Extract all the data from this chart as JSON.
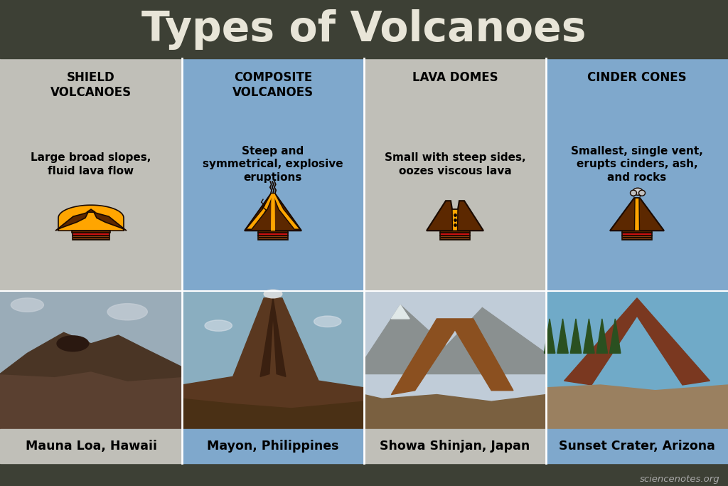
{
  "title": "Types of Volcanoes",
  "title_bg": "#3d4035",
  "title_color": "#e8e5d8",
  "title_fontsize": 42,
  "footer_text": "sciencenotes.org",
  "footer_bg": "#3d4035",
  "footer_color": "#aaaaaa",
  "columns": [
    {
      "name": "SHIELD\nVOLCANOES",
      "description": "Large broad slopes,\nfluid lava flow",
      "location": "Mauna Loa, Hawaii",
      "bg_color_top": "#c0bfb8",
      "bg_color_bot": "#c0bfb8",
      "type": "shield"
    },
    {
      "name": "COMPOSITE\nVOLCANOES",
      "description": "Steep and\nsymmetrical, explosive\neruptions",
      "location": "Mayon, Philippines",
      "bg_color_top": "#7fa8cc",
      "bg_color_bot": "#7fa8cc",
      "type": "composite"
    },
    {
      "name": "LAVA DOMES",
      "description": "Small with steep sides,\noozes viscous lava",
      "location": "Showa Shinjan, Japan",
      "bg_color_top": "#c0bfb8",
      "bg_color_bot": "#c0bfb8",
      "type": "dome"
    },
    {
      "name": "CINDER CONES",
      "description": "Smallest, single vent,\nerupts cinders, ash,\nand rocks",
      "location": "Sunset Crater, Arizona",
      "bg_color_top": "#7fa8cc",
      "bg_color_bot": "#7fa8cc",
      "type": "cinder"
    }
  ],
  "lava_orange": "#FFA500",
  "lava_orange2": "#FF8000",
  "volcano_brown": "#5C2800",
  "volcano_mid_brown": "#7A3A10",
  "base_red": "#CC1010",
  "base_stripe": "#8B4010",
  "outline_color": "#1a0a00"
}
